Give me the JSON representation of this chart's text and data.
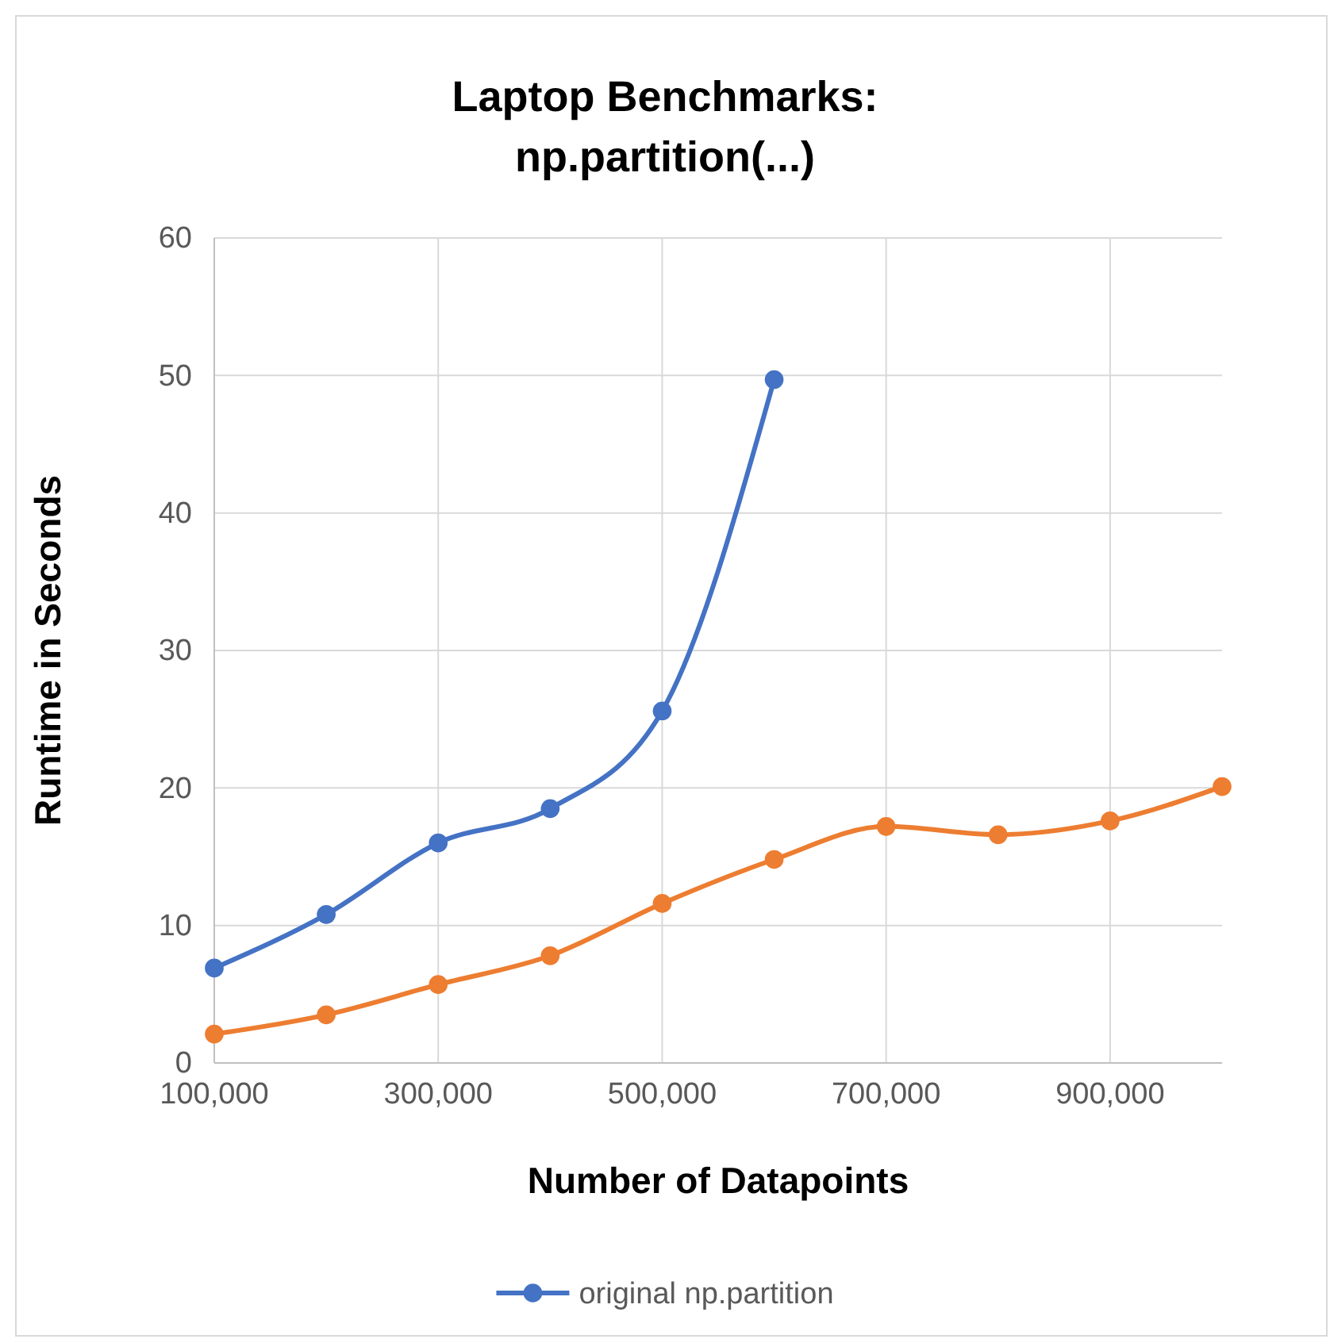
{
  "chart_data": {
    "type": "line",
    "title": "Laptop Benchmarks:\nnp.partition(...)",
    "xlabel": "Number of Datapoints",
    "ylabel": "Runtime in Seconds",
    "xlim": [
      100000,
      1000000
    ],
    "xticks": [
      {
        "value": 100000,
        "label": "100,000"
      },
      {
        "value": 300000,
        "label": "300,000"
      },
      {
        "value": 500000,
        "label": "500,000"
      },
      {
        "value": 700000,
        "label": "700,000"
      },
      {
        "value": 900000,
        "label": "900,000"
      }
    ],
    "ylim": [
      0,
      60
    ],
    "yticks": [
      0,
      10,
      20,
      30,
      40,
      50,
      60
    ],
    "grid": true,
    "legend": "bottom",
    "marker": "circle",
    "series": [
      {
        "name": "original np.partition",
        "color": "#4472c4",
        "x": [
          100000,
          200000,
          300000,
          400000,
          500000,
          600000
        ],
        "values": [
          6.9,
          10.8,
          16.0,
          18.5,
          25.6,
          49.7
        ]
      },
      {
        "color": "#ed7d31",
        "x": [
          100000,
          200000,
          300000,
          400000,
          500000,
          600000,
          700000,
          800000,
          900000,
          1000000
        ],
        "values": [
          2.1,
          3.5,
          5.7,
          7.8,
          11.6,
          14.8,
          17.2,
          16.6,
          17.6,
          20.1
        ]
      }
    ]
  }
}
